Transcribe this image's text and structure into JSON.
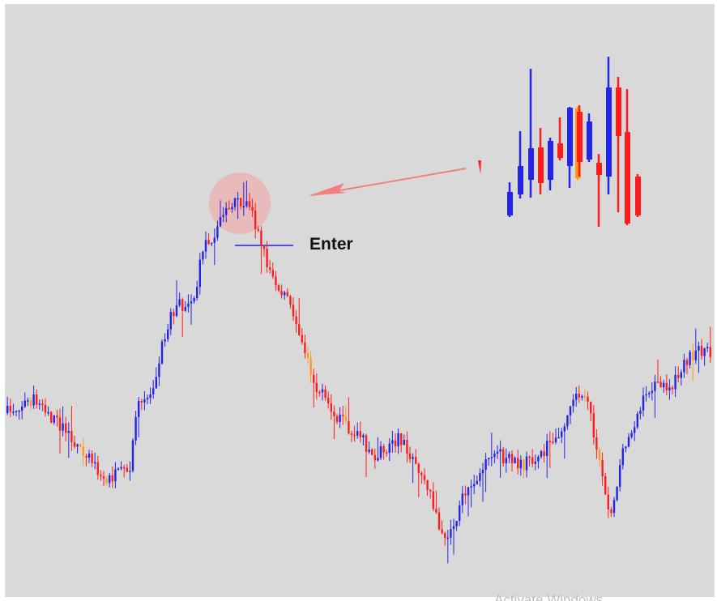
{
  "annotation": {
    "label": "Enter"
  },
  "watermark": "Activate Windows"
}
